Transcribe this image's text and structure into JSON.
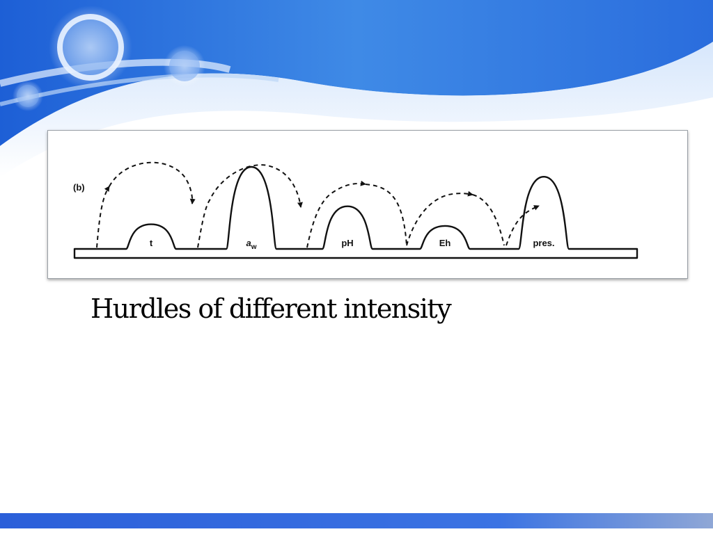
{
  "slide": {
    "caption": "Hurdles of different intensity",
    "colors": {
      "accent_blue": "#2f6fd8",
      "bar_blue": "#2b5fd9",
      "line": "#111111"
    }
  },
  "diagram": {
    "panel_label": "(b)",
    "hurdles": [
      {
        "label": "t",
        "subscript": "",
        "relative_height": 0.3
      },
      {
        "label": "a",
        "subscript": "w",
        "relative_height": 1.0
      },
      {
        "label": "pH",
        "subscript": "",
        "relative_height": 0.52
      },
      {
        "label": "Eh",
        "subscript": "",
        "relative_height": 0.28
      },
      {
        "label": "pres.",
        "subscript": "",
        "relative_height": 0.88
      }
    ]
  }
}
